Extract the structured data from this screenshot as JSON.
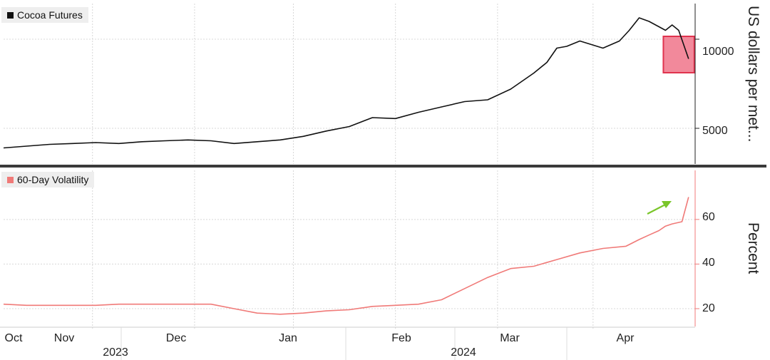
{
  "chart_data": [
    {
      "type": "line",
      "legend": "Cocoa Futures",
      "color": "#111111",
      "ylabel": "US dollars per met...",
      "ylim": [
        3000,
        12000
      ],
      "yticks": [
        5000,
        10000
      ],
      "grid": true,
      "x": [
        "2023-10-01",
        "2023-10-08",
        "2023-10-15",
        "2023-10-22",
        "2023-10-29",
        "2023-11-05",
        "2023-11-12",
        "2023-11-19",
        "2023-11-26",
        "2023-12-03",
        "2023-12-10",
        "2023-12-17",
        "2023-12-24",
        "2023-12-31",
        "2024-01-07",
        "2024-01-14",
        "2024-01-21",
        "2024-01-28",
        "2024-02-04",
        "2024-02-11",
        "2024-02-18",
        "2024-02-25",
        "2024-03-03",
        "2024-03-10",
        "2024-03-14",
        "2024-03-17",
        "2024-03-20",
        "2024-03-24",
        "2024-03-31",
        "2024-04-05",
        "2024-04-08",
        "2024-04-11",
        "2024-04-14",
        "2024-04-17",
        "2024-04-19",
        "2024-04-21",
        "2024-04-23",
        "2024-04-26"
      ],
      "values": [
        3900,
        4000,
        4100,
        4150,
        4200,
        4150,
        4250,
        4300,
        4350,
        4300,
        4150,
        4250,
        4350,
        4550,
        4850,
        5100,
        5600,
        5550,
        5900,
        6200,
        6500,
        6600,
        7200,
        8100,
        8700,
        9500,
        9600,
        9900,
        9500,
        9900,
        10500,
        11200,
        11000,
        10700,
        10500,
        10800,
        10500,
        8900
      ],
      "highlight": {
        "from": "2024-04-19",
        "to": "2024-04-26",
        "fill": "#f2899b",
        "stroke": "#e0334e"
      }
    },
    {
      "type": "line",
      "legend": "60-Day Volatility",
      "color": "#f07a78",
      "ylabel": "Percent",
      "ylim": [
        12,
        82
      ],
      "yticks": [
        20,
        40,
        60
      ],
      "grid": true,
      "x": [
        "2023-10-01",
        "2023-10-08",
        "2023-10-15",
        "2023-10-22",
        "2023-10-29",
        "2023-11-05",
        "2023-11-12",
        "2023-11-19",
        "2023-11-26",
        "2023-12-03",
        "2023-12-10",
        "2023-12-17",
        "2023-12-24",
        "2023-12-31",
        "2024-01-07",
        "2024-01-14",
        "2024-01-21",
        "2024-01-28",
        "2024-02-04",
        "2024-02-11",
        "2024-02-18",
        "2024-02-25",
        "2024-03-03",
        "2024-03-10",
        "2024-03-17",
        "2024-03-24",
        "2024-03-31",
        "2024-04-07",
        "2024-04-11",
        "2024-04-14",
        "2024-04-17",
        "2024-04-19",
        "2024-04-21",
        "2024-04-24",
        "2024-04-26"
      ],
      "values": [
        22,
        21.5,
        21.5,
        21.5,
        21.5,
        22,
        22,
        22,
        22,
        22,
        20,
        18,
        17.5,
        18,
        19,
        19.5,
        21,
        21.5,
        22,
        24,
        29,
        34,
        38,
        39,
        42,
        45,
        47,
        48,
        51,
        53,
        55,
        57,
        58,
        59,
        70
      ]
    }
  ],
  "x_axis": {
    "months": [
      "Oct",
      "Nov",
      "Dec",
      "Jan",
      "Feb",
      "Mar",
      "Apr"
    ],
    "years": [
      "2023",
      "2024"
    ]
  },
  "annotation_arrow_color": "#7ac62a"
}
